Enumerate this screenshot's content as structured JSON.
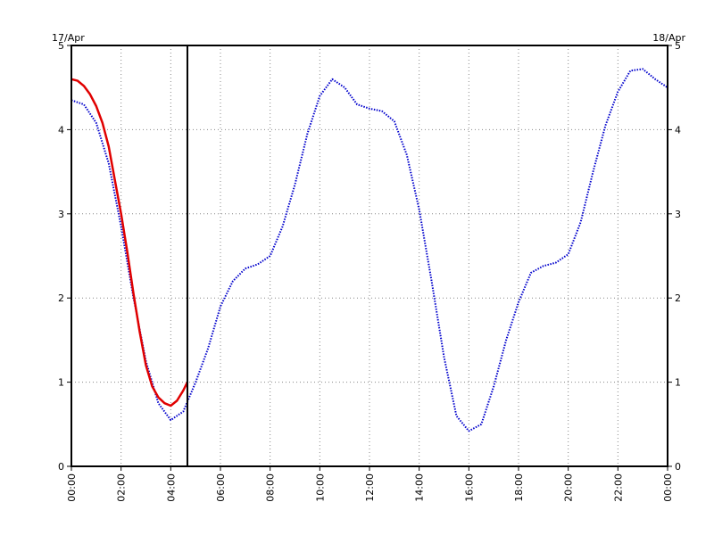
{
  "chart_data": {
    "type": "line",
    "title": "",
    "xlabel": "",
    "ylabel": "",
    "date_labels": {
      "left": "17/Apr",
      "right": "18/Apr"
    },
    "x_unit": "hours",
    "xlim": [
      0,
      24
    ],
    "ylim": [
      0,
      5
    ],
    "grid": true,
    "x_ticks": [
      {
        "value": 0,
        "label": "00:00"
      },
      {
        "value": 2,
        "label": "02:00"
      },
      {
        "value": 4,
        "label": "04:00"
      },
      {
        "value": 6,
        "label": "06:00"
      },
      {
        "value": 8,
        "label": "08:00"
      },
      {
        "value": 10,
        "label": "10:00"
      },
      {
        "value": 12,
        "label": "12:00"
      },
      {
        "value": 14,
        "label": "14:00"
      },
      {
        "value": 16,
        "label": "16:00"
      },
      {
        "value": 18,
        "label": "18:00"
      },
      {
        "value": 20,
        "label": "20:00"
      },
      {
        "value": 22,
        "label": "22:00"
      },
      {
        "value": 24,
        "label": "00:00"
      }
    ],
    "y_ticks": [
      {
        "value": 0,
        "label": "0"
      },
      {
        "value": 1,
        "label": "1"
      },
      {
        "value": 2,
        "label": "2"
      },
      {
        "value": 3,
        "label": "3"
      },
      {
        "value": 4,
        "label": "4"
      },
      {
        "value": 5,
        "label": "5"
      }
    ],
    "now_marker": 4.67,
    "series": [
      {
        "color": "#0000cc",
        "style": "dotted",
        "x": [
          0,
          0.5,
          1,
          1.5,
          2,
          2.5,
          3,
          3.5,
          4,
          4.5,
          5,
          5.5,
          6,
          6.5,
          7,
          7.5,
          8,
          8.5,
          9,
          9.5,
          10,
          10.5,
          11,
          11.5,
          12,
          12.5,
          13,
          13.5,
          14,
          14.5,
          15,
          15.5,
          16,
          16.5,
          17,
          17.5,
          18,
          18.5,
          19,
          19.5,
          20,
          20.5,
          21,
          21.5,
          22,
          22.5,
          23,
          23.5,
          24
        ],
        "y": [
          4.35,
          4.3,
          4.08,
          3.6,
          2.85,
          2.0,
          1.25,
          0.75,
          0.55,
          0.65,
          1.0,
          1.4,
          1.9,
          2.2,
          2.35,
          2.4,
          2.5,
          2.85,
          3.35,
          3.95,
          4.4,
          4.6,
          4.5,
          4.3,
          4.25,
          4.22,
          4.1,
          3.7,
          3.05,
          2.2,
          1.3,
          0.6,
          0.42,
          0.5,
          0.95,
          1.5,
          1.95,
          2.3,
          2.38,
          2.42,
          2.52,
          2.9,
          3.5,
          4.05,
          4.45,
          4.7,
          4.72,
          4.6,
          4.5
        ]
      },
      {
        "color": "#e00000",
        "style": "solid",
        "x": [
          0,
          0.25,
          0.5,
          0.75,
          1,
          1.25,
          1.5,
          1.75,
          2,
          2.25,
          2.5,
          2.75,
          3,
          3.25,
          3.5,
          3.75,
          4,
          4.25,
          4.5,
          4.67
        ],
        "y": [
          4.6,
          4.58,
          4.52,
          4.42,
          4.28,
          4.08,
          3.8,
          3.4,
          3.0,
          2.55,
          2.05,
          1.6,
          1.2,
          0.95,
          0.82,
          0.75,
          0.72,
          0.78,
          0.9,
          1.0
        ]
      }
    ]
  }
}
